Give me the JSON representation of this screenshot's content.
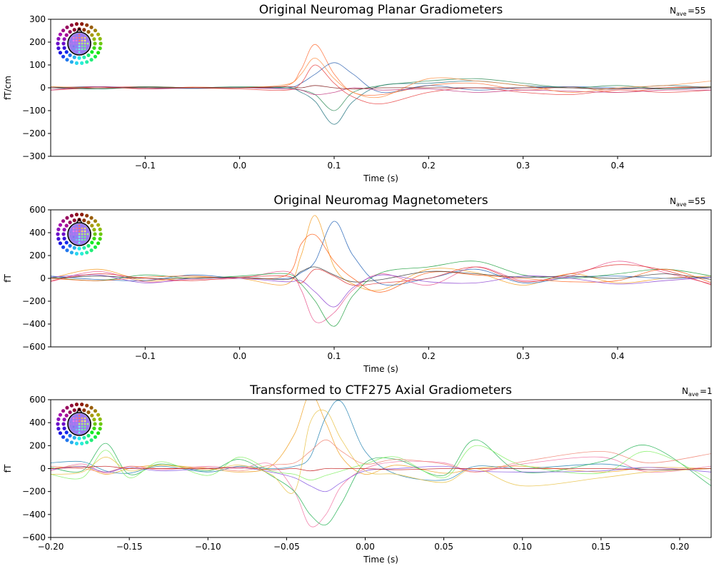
{
  "chart_data": [
    {
      "type": "line",
      "title": "Original Neuromag Planar Gradiometers",
      "nave_label": "N",
      "nave_sub": "ave",
      "nave_value": "=55",
      "xlabel": "Time (s)",
      "ylabel": "fT/cm",
      "xlim": [
        -0.2,
        0.499
      ],
      "ylim": [
        -300,
        300
      ],
      "xticks": [
        -0.1,
        0.0,
        0.1,
        0.2,
        0.3,
        0.4
      ],
      "xtick_labels": [
        "−0.1",
        "0.0",
        "0.1",
        "0.2",
        "0.3",
        "0.4"
      ],
      "yticks": [
        -300,
        -200,
        -100,
        0,
        100,
        200,
        300
      ],
      "ytick_labels": [
        "−300",
        "−200",
        "−100",
        "0",
        "100",
        "200",
        "300"
      ],
      "grid": false,
      "sensor_icon": "sensor-layout-head-icon",
      "x": [
        -0.2,
        -0.15,
        -0.1,
        -0.05,
        0,
        0.05,
        0.065,
        0.08,
        0.1,
        0.12,
        0.15,
        0.2,
        0.25,
        0.3,
        0.35,
        0.4,
        0.45,
        0.5
      ],
      "series": [
        {
          "color": "#ff6a30",
          "values": [
            0,
            5,
            -5,
            3,
            0,
            10,
            80,
            190,
            60,
            -20,
            -30,
            10,
            20,
            -10,
            5,
            -20,
            0,
            5
          ]
        },
        {
          "color": "#1a6e7a",
          "values": [
            0,
            -5,
            3,
            0,
            2,
            0,
            -20,
            -60,
            -160,
            -60,
            10,
            20,
            30,
            10,
            0,
            -5,
            10,
            0
          ]
        },
        {
          "color": "#2a5fb0",
          "values": [
            0,
            5,
            0,
            -3,
            0,
            0,
            20,
            60,
            110,
            60,
            -20,
            10,
            -10,
            0,
            5,
            0,
            -5,
            0
          ]
        },
        {
          "color": "#e83a3a",
          "values": [
            -10,
            0,
            5,
            0,
            -5,
            -10,
            20,
            100,
            20,
            -40,
            -70,
            -20,
            0,
            -20,
            -30,
            -10,
            -20,
            -10
          ]
        },
        {
          "color": "#2e8b57",
          "values": [
            5,
            -5,
            5,
            0,
            5,
            0,
            -10,
            -30,
            -100,
            -20,
            10,
            30,
            40,
            20,
            0,
            10,
            -5,
            5
          ]
        },
        {
          "color": "#c0307a",
          "values": [
            -10,
            5,
            -5,
            0,
            0,
            -5,
            -10,
            -30,
            -20,
            0,
            -10,
            -5,
            -20,
            -10,
            -15,
            -20,
            -10,
            -10
          ]
        },
        {
          "color": "#ff8c40",
          "values": [
            5,
            0,
            0,
            0,
            0,
            15,
            60,
            130,
            40,
            -20,
            -40,
            40,
            30,
            10,
            -20,
            0,
            10,
            30
          ]
        },
        {
          "color": "#7a1010",
          "values": [
            0,
            0,
            0,
            0,
            0,
            5,
            0,
            10,
            0,
            -5,
            0,
            0,
            0,
            0,
            0,
            -5,
            0,
            0
          ]
        }
      ]
    },
    {
      "type": "line",
      "title": "Original Neuromag Magnetometers",
      "nave_label": "N",
      "nave_sub": "ave",
      "nave_value": "=55",
      "xlabel": "Time (s)",
      "ylabel": "fT",
      "xlim": [
        -0.2,
        0.499
      ],
      "ylim": [
        -600,
        600
      ],
      "xticks": [
        -0.1,
        0.0,
        0.1,
        0.2,
        0.3,
        0.4
      ],
      "xtick_labels": [
        "−0.1",
        "0.0",
        "0.1",
        "0.2",
        "0.3",
        "0.4"
      ],
      "yticks": [
        -600,
        -400,
        -200,
        0,
        200,
        400,
        600
      ],
      "ytick_labels": [
        "−600",
        "−400",
        "−200",
        "0",
        "200",
        "400",
        "600"
      ],
      "grid": false,
      "sensor_icon": "sensor-layout-head-icon",
      "x": [
        -0.2,
        -0.15,
        -0.1,
        -0.05,
        0,
        0.05,
        0.065,
        0.08,
        0.1,
        0.12,
        0.15,
        0.2,
        0.25,
        0.3,
        0.35,
        0.4,
        0.45,
        0.5
      ],
      "series": [
        {
          "color": "#f59a1a",
          "values": [
            0,
            80,
            -20,
            10,
            0,
            -50,
            200,
            550,
            100,
            -50,
            -100,
            80,
            50,
            -60,
            40,
            -40,
            0,
            20
          ]
        },
        {
          "color": "#1f5fb5",
          "values": [
            20,
            -10,
            -20,
            30,
            0,
            0,
            50,
            150,
            500,
            200,
            -50,
            0,
            80,
            -40,
            10,
            20,
            0,
            10
          ]
        },
        {
          "color": "#e8508a",
          "values": [
            -30,
            60,
            -30,
            -10,
            0,
            60,
            -100,
            -380,
            -300,
            -100,
            40,
            -60,
            100,
            -20,
            20,
            150,
            50,
            -50
          ]
        },
        {
          "color": "#20a040",
          "values": [
            10,
            -20,
            30,
            0,
            20,
            40,
            -50,
            -200,
            -420,
            -150,
            50,
            100,
            150,
            30,
            0,
            40,
            80,
            20
          ]
        },
        {
          "color": "#ff5a10",
          "values": [
            0,
            -20,
            10,
            20,
            0,
            30,
            300,
            380,
            150,
            0,
            -120,
            50,
            30,
            0,
            -30,
            -20,
            80,
            -40
          ]
        },
        {
          "color": "#8a40d0",
          "values": [
            10,
            30,
            -40,
            0,
            0,
            -30,
            -20,
            -120,
            -250,
            -80,
            30,
            -30,
            -40,
            20,
            0,
            -50,
            -20,
            10
          ]
        },
        {
          "color": "#333333",
          "values": [
            0,
            20,
            0,
            0,
            10,
            -10,
            60,
            100,
            30,
            -30,
            -10,
            60,
            40,
            10,
            20,
            0,
            40,
            -10
          ]
        },
        {
          "color": "#e03030",
          "values": [
            -20,
            40,
            0,
            -20,
            10,
            20,
            -40,
            80,
            20,
            -60,
            -40,
            0,
            100,
            -30,
            40,
            120,
            70,
            -60
          ]
        }
      ]
    },
    {
      "type": "line",
      "title": "Transformed to CTF275 Axial Gradiometers",
      "nave_label": "N",
      "nave_sub": "ave",
      "nave_value": "=1",
      "xlabel": "Time (s)",
      "ylabel": "fT",
      "xlim": [
        -0.2,
        0.22
      ],
      "ylim": [
        -600,
        600
      ],
      "xticks": [
        -0.2,
        -0.15,
        -0.1,
        -0.05,
        0.0,
        0.05,
        0.1,
        0.15,
        0.2
      ],
      "xtick_labels": [
        "−0.20",
        "−0.15",
        "−0.10",
        "−0.05",
        "0.00",
        "0.05",
        "0.10",
        "0.15",
        "0.20"
      ],
      "yticks": [
        -600,
        -400,
        -200,
        0,
        200,
        400,
        600
      ],
      "ytick_labels": [
        "−600",
        "−400",
        "−200",
        "0",
        "200",
        "400",
        "600"
      ],
      "grid": false,
      "sensor_icon": "sensor-layout-head-icon",
      "x": [
        -0.2,
        -0.18,
        -0.165,
        -0.15,
        -0.13,
        -0.1,
        -0.08,
        -0.06,
        -0.045,
        -0.035,
        -0.025,
        -0.015,
        0,
        0.02,
        0.05,
        0.07,
        0.1,
        0.15,
        0.18,
        0.22
      ],
      "series": [
        {
          "color": "#f0a020",
          "values": [
            0,
            20,
            -50,
            0,
            30,
            0,
            -30,
            20,
            300,
            650,
            400,
            100,
            -50,
            30,
            -40,
            0,
            20,
            -30,
            10,
            0
          ]
        },
        {
          "color": "#2080b0",
          "values": [
            50,
            60,
            -20,
            -40,
            20,
            -30,
            20,
            0,
            20,
            100,
            450,
            580,
            150,
            -50,
            -100,
            20,
            0,
            40,
            -10,
            0
          ]
        },
        {
          "color": "#f070a0",
          "values": [
            -20,
            40,
            -40,
            20,
            -10,
            20,
            0,
            40,
            -200,
            -500,
            -400,
            -150,
            0,
            60,
            50,
            -30,
            40,
            100,
            -30,
            20
          ]
        },
        {
          "color": "#20b050",
          "values": [
            10,
            -20,
            220,
            -50,
            40,
            -20,
            80,
            -60,
            -200,
            -400,
            -490,
            -300,
            50,
            80,
            -60,
            250,
            -30,
            60,
            200,
            -150
          ]
        },
        {
          "color": "#80f060",
          "values": [
            -50,
            -80,
            160,
            -80,
            60,
            -60,
            100,
            -20,
            -50,
            -100,
            -60,
            -20,
            40,
            100,
            -80,
            200,
            30,
            -40,
            150,
            -100
          ]
        },
        {
          "color": "#f08070",
          "values": [
            20,
            0,
            -30,
            20,
            0,
            10,
            -20,
            30,
            50,
            150,
            250,
            150,
            40,
            80,
            40,
            -30,
            60,
            150,
            50,
            130
          ]
        },
        {
          "color": "#8050e0",
          "values": [
            -10,
            20,
            -30,
            10,
            -20,
            0,
            10,
            -30,
            -80,
            -150,
            -200,
            -120,
            -20,
            0,
            20,
            -20,
            -30,
            -20,
            10,
            -30
          ]
        },
        {
          "color": "#e8c040",
          "values": [
            -50,
            -30,
            100,
            -20,
            30,
            -10,
            30,
            -50,
            -200,
            400,
            500,
            250,
            -20,
            -50,
            -120,
            0,
            -150,
            -80,
            -30,
            0
          ]
        },
        {
          "color": "#c01010",
          "values": [
            0,
            10,
            20,
            0,
            0,
            0,
            10,
            -10,
            0,
            -20,
            0,
            0,
            0,
            -10,
            0,
            0,
            0,
            0,
            -10,
            0
          ]
        }
      ]
    }
  ]
}
